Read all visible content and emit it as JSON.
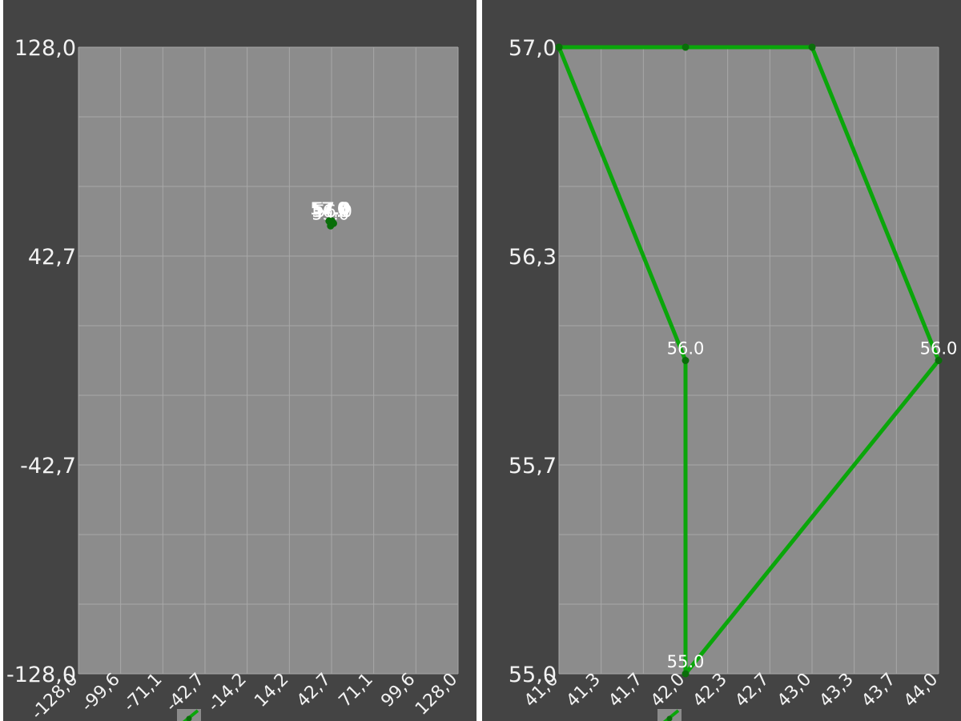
{
  "chart_data": [
    {
      "type": "line",
      "title": "",
      "xlabel": "",
      "ylabel": "",
      "xlim": [
        -128.0,
        128.0
      ],
      "ylim": [
        -128.0,
        128.0
      ],
      "x_ticks": [
        "-128,0",
        "-99,6",
        "-71,1",
        "-42,7",
        "-14,2",
        "14,2",
        "42,7",
        "71,1",
        "99,6",
        "128,0"
      ],
      "y_ticks": [
        "128,0",
        "42,7",
        "-42,7",
        "-128,0"
      ],
      "grid": true,
      "line_color": "#0aa60a",
      "series": [
        {
          "points": [
            {
              "x": 41.0,
              "y": 57.0,
              "label": "57.0"
            },
            {
              "x": 42.0,
              "y": 57.0,
              "label": "57.0"
            },
            {
              "x": 43.0,
              "y": 57.0,
              "label": "57.0"
            },
            {
              "x": 44.0,
              "y": 56.0,
              "label": "56.0"
            },
            {
              "x": 42.0,
              "y": 55.0,
              "label": "55.0"
            },
            {
              "x": 42.0,
              "y": 56.0,
              "label": "56.0"
            },
            {
              "x": 41.0,
              "y": 57.0,
              "label": "57.0"
            }
          ]
        }
      ]
    },
    {
      "type": "line",
      "title": "",
      "xlabel": "",
      "ylabel": "",
      "xlim": [
        41.0,
        44.0
      ],
      "ylim": [
        55.0,
        57.0
      ],
      "x_ticks": [
        "41,0",
        "41,3",
        "41,7",
        "42,0",
        "42,3",
        "42,7",
        "43,0",
        "43,3",
        "43,7",
        "44,0"
      ],
      "y_ticks": [
        "57,0",
        "56,3",
        "55,7",
        "55,0"
      ],
      "grid": true,
      "line_color": "#0aa60a",
      "series": [
        {
          "points": [
            {
              "x": 41.0,
              "y": 57.0,
              "label": ""
            },
            {
              "x": 42.0,
              "y": 57.0,
              "label": ""
            },
            {
              "x": 43.0,
              "y": 57.0,
              "label": ""
            },
            {
              "x": 44.0,
              "y": 56.0,
              "label": "56.0"
            },
            {
              "x": 42.0,
              "y": 55.0,
              "label": "55.0"
            },
            {
              "x": 42.0,
              "y": 56.0,
              "label": "56.0"
            },
            {
              "x": 41.0,
              "y": 57.0,
              "label": ""
            }
          ]
        }
      ]
    }
  ]
}
